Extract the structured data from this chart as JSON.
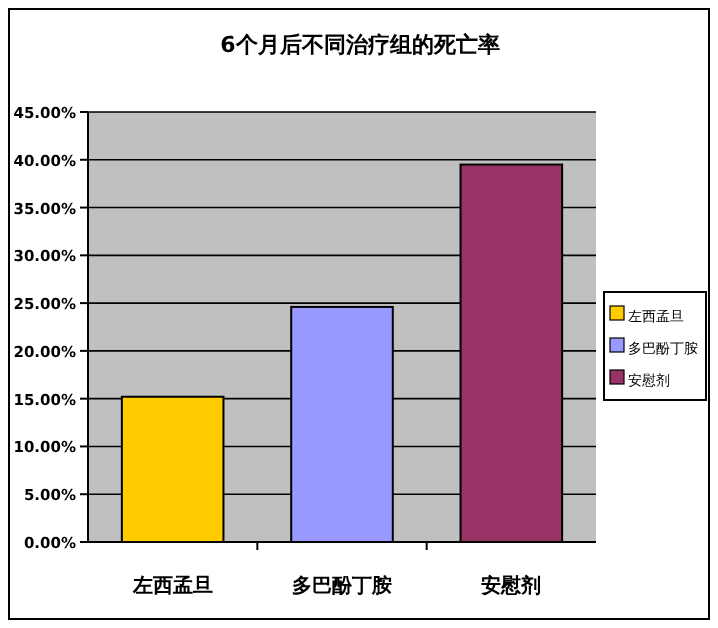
{
  "chart_data": {
    "type": "bar",
    "title": "6个月后不同治疗组的死亡率",
    "categories": [
      "左西孟旦",
      "多巴酚丁胺",
      "安慰剂"
    ],
    "series": [
      {
        "name": "左西孟旦",
        "color": "#ffcc00",
        "values": [
          15.2,
          null,
          null
        ]
      },
      {
        "name": "多巴酚丁胺",
        "color": "#9999ff",
        "values": [
          null,
          24.6,
          null
        ]
      },
      {
        "name": "安慰剂",
        "color": "#993366",
        "values": [
          null,
          null,
          39.5
        ]
      }
    ],
    "ylim": [
      0,
      45
    ],
    "yticks": [
      {
        "value": 0,
        "label": "0.00%"
      },
      {
        "value": 5,
        "label": "5.00%"
      },
      {
        "value": 10,
        "label": "10.00%"
      },
      {
        "value": 15,
        "label": "15.00%"
      },
      {
        "value": 20,
        "label": "20.00%"
      },
      {
        "value": 25,
        "label": "25.00%"
      },
      {
        "value": 30,
        "label": "30.00%"
      },
      {
        "value": 35,
        "label": "35.00%"
      },
      {
        "value": 40,
        "label": "40.00%"
      },
      {
        "value": 45,
        "label": "45.00%"
      }
    ],
    "grid": "y",
    "legend": "right"
  }
}
